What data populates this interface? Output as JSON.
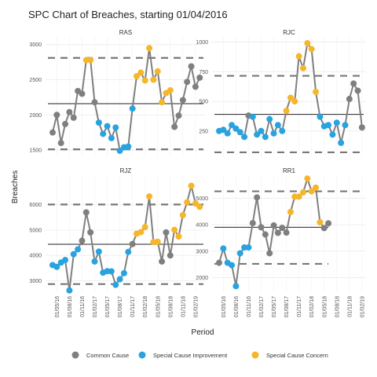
{
  "chart_data": {
    "type": "line",
    "title": "SPC Chart of Breaches, starting 01/04/2016",
    "xlabel": "Period",
    "ylabel": "Breaches",
    "x_tick_labels": [
      "01/05/16",
      "01/08/16",
      "01/11/16",
      "01/02/17",
      "01/05/17",
      "01/08/17",
      "01/11/17",
      "01/02/18",
      "01/05/18",
      "01/08/18",
      "01/11/18",
      "01/02/19"
    ],
    "legend": [
      {
        "key": "common",
        "label": "Common Cause",
        "color": "#7f7f7f"
      },
      {
        "key": "improve",
        "label": "Special Cause Improvement",
        "color": "#29a3e0"
      },
      {
        "key": "concern",
        "label": "Special Cause Concern",
        "color": "#f5b62a"
      }
    ],
    "panels": [
      {
        "name": "RAS",
        "ylim": [
          1400,
          3120
        ],
        "yticks": [
          1500,
          2000,
          2500,
          3000
        ],
        "mean": 2160,
        "ucl": 2810,
        "lcl": 1510,
        "values": [
          1750,
          2000,
          1600,
          1870,
          2040,
          1960,
          2340,
          2300,
          2780,
          2780,
          2180,
          1890,
          1730,
          1840,
          1670,
          1820,
          1490,
          1540,
          1550,
          2090,
          2550,
          2600,
          2490,
          2950,
          2500,
          2620,
          2180,
          2310,
          2350,
          1830,
          1990,
          2210,
          2470,
          2690,
          2400,
          2530
        ],
        "status": [
          "c",
          "c",
          "c",
          "c",
          "c",
          "c",
          "c",
          "c",
          "s",
          "s",
          "c",
          "i",
          "i",
          "i",
          "i",
          "i",
          "i",
          "i",
          "i",
          "i",
          "s",
          "s",
          "s",
          "s",
          "s",
          "s",
          "s",
          "s",
          "s",
          "c",
          "c",
          "c",
          "c",
          "c",
          "c",
          "c"
        ]
      },
      {
        "name": "RJC",
        "ylim": [
          30,
          1050
        ],
        "yticks": [
          250,
          500,
          750,
          1000
        ],
        "mean": 390,
        "ucl": 715,
        "lcl": 70,
        "values": [
          250,
          260,
          230,
          300,
          270,
          240,
          200,
          380,
          370,
          220,
          250,
          200,
          350,
          230,
          300,
          250,
          420,
          530,
          500,
          880,
          780,
          990,
          940,
          580,
          370,
          290,
          300,
          220,
          320,
          150,
          300,
          520,
          650,
          590,
          280
        ],
        "status": [
          "i",
          "i",
          "i",
          "i",
          "i",
          "i",
          "i",
          "c",
          "i",
          "i",
          "i",
          "i",
          "i",
          "i",
          "i",
          "i",
          "s",
          "s",
          "s",
          "s",
          "s",
          "s",
          "s",
          "s",
          "i",
          "i",
          "i",
          "i",
          "i",
          "i",
          "i",
          "c",
          "c",
          "c",
          "c"
        ]
      },
      {
        "name": "RJZ",
        "ylim": [
          2550,
          7200
        ],
        "yticks": [
          3000,
          4000,
          5000,
          6000
        ],
        "mean": 4440,
        "ucl": 6010,
        "lcl": 2870,
        "values": [
          3620,
          3550,
          3720,
          3820,
          2620,
          4050,
          4240,
          4580,
          5700,
          4910,
          3760,
          4150,
          3320,
          3380,
          3370,
          2840,
          3060,
          3300,
          4140,
          4450,
          4860,
          4920,
          5120,
          6330,
          4530,
          4540,
          3760,
          4910,
          4000,
          5010,
          4750,
          5590,
          6100,
          6750,
          6050,
          5920
        ],
        "status": [
          "i",
          "i",
          "i",
          "i",
          "i",
          "i",
          "i",
          "c",
          "c",
          "c",
          "i",
          "i",
          "i",
          "i",
          "i",
          "i",
          "i",
          "i",
          "i",
          "c",
          "s",
          "s",
          "s",
          "s",
          "s",
          "s",
          "c",
          "c",
          "c",
          "s",
          "s",
          "s",
          "s",
          "s",
          "s",
          "s"
        ]
      },
      {
        "name": "RR1",
        "ylim": [
          1450,
          5900
        ],
        "yticks": [
          2000,
          3000,
          4000,
          5000
        ],
        "mean": 3900,
        "ucl": 5260,
        "lcl": 2520,
        "values": [
          2560,
          3100,
          2560,
          2470,
          1680,
          2920,
          3140,
          3140,
          4060,
          5030,
          3900,
          3630,
          2920,
          3970,
          3690,
          3880,
          3700,
          4480,
          5060,
          5060,
          5220,
          5740,
          5260,
          5400,
          4090,
          3870,
          4050
        ],
        "status": [
          "c",
          "i",
          "i",
          "i",
          "i",
          "i",
          "i",
          "i",
          "c",
          "c",
          "c",
          "c",
          "c",
          "c",
          "c",
          "c",
          "c",
          "s",
          "s",
          "s",
          "s",
          "s",
          "s",
          "s",
          "s",
          "c",
          "c"
        ]
      }
    ]
  }
}
